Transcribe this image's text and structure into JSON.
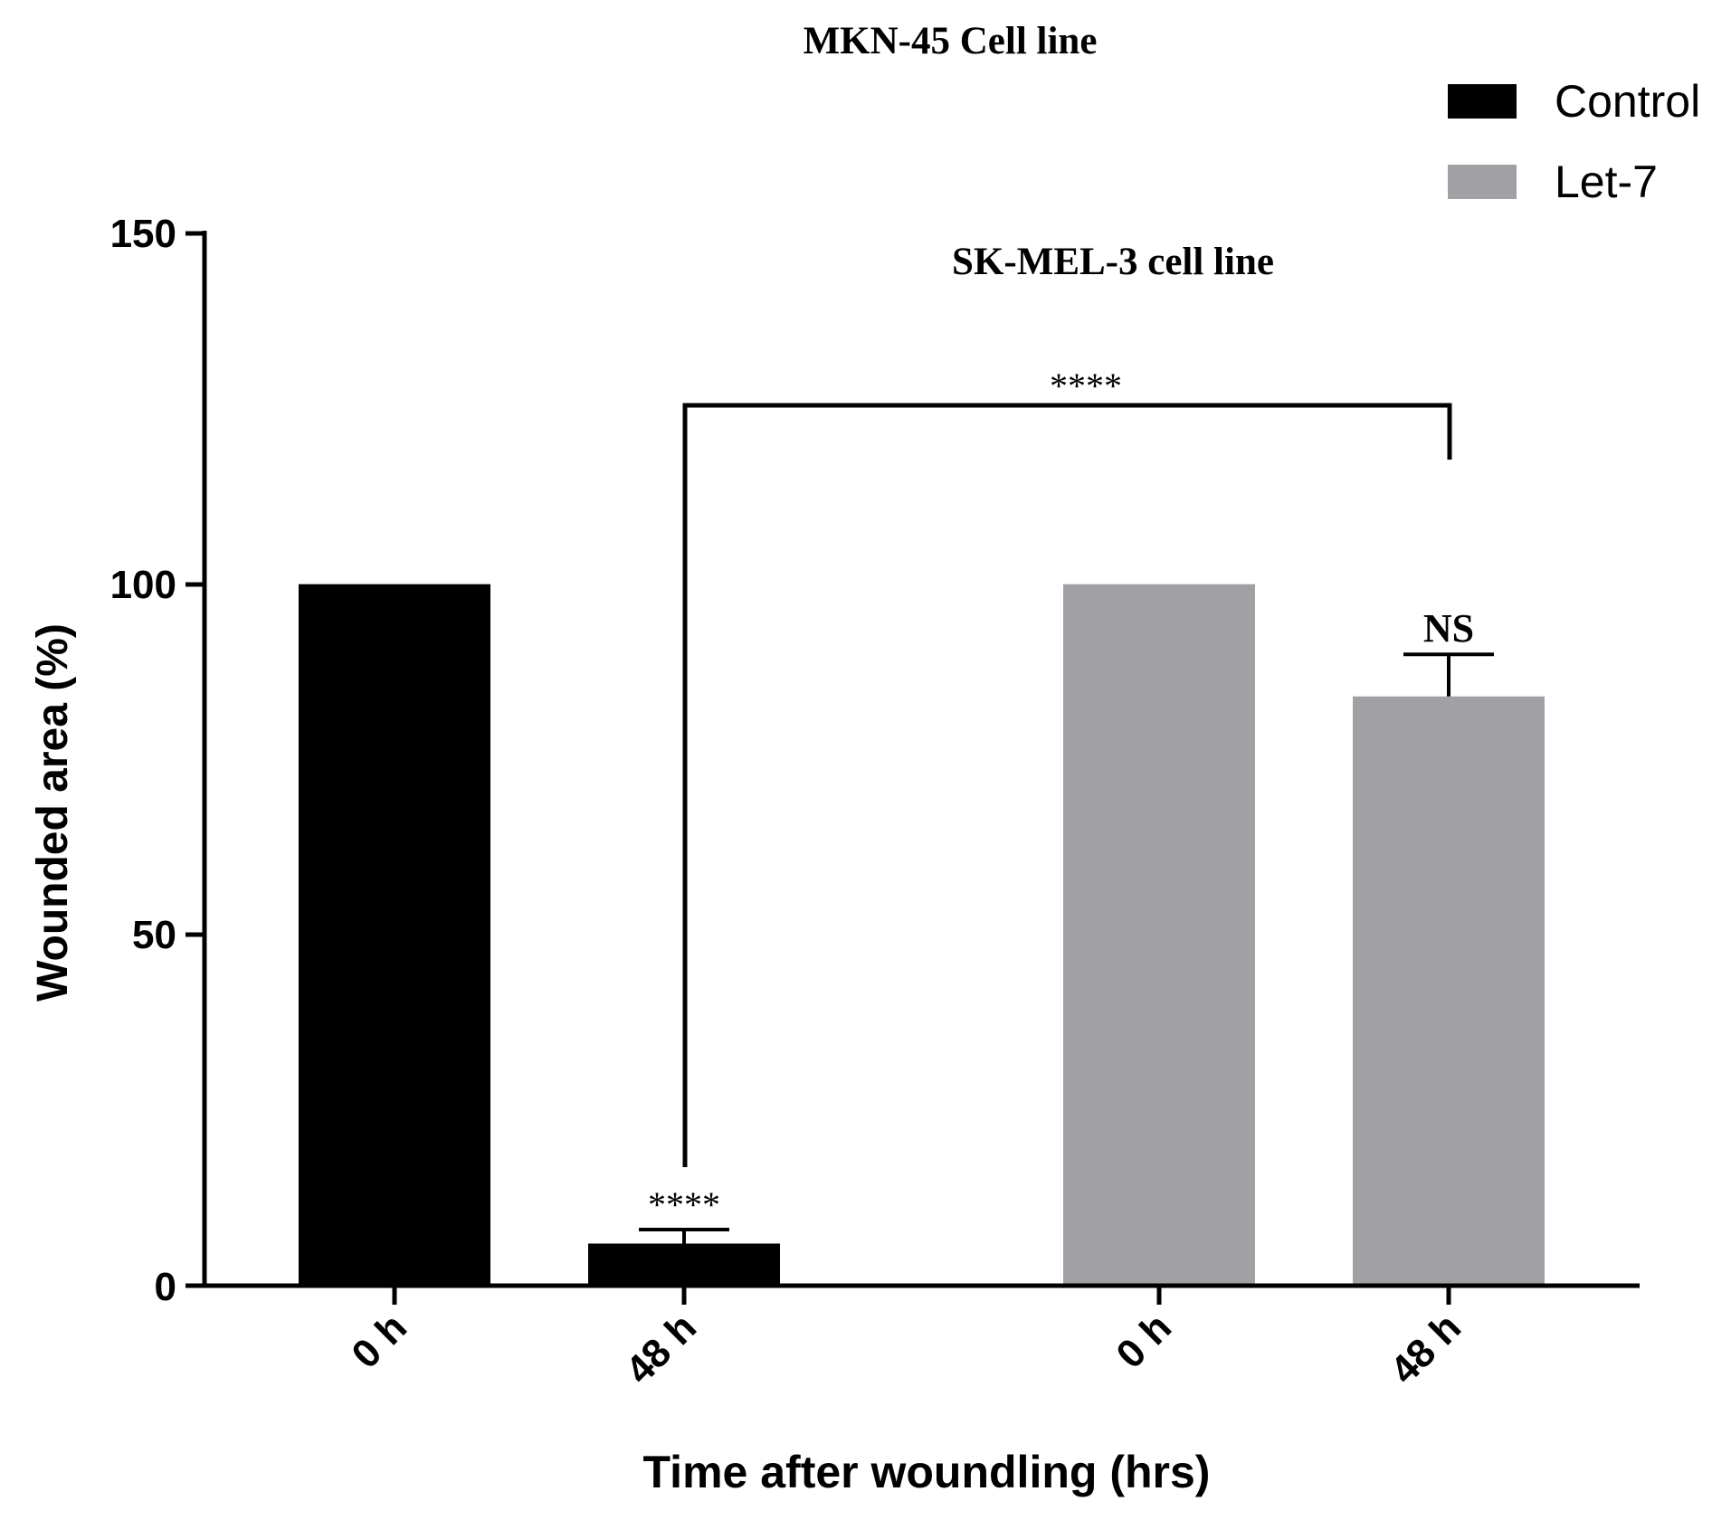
{
  "chart_data": {
    "type": "bar",
    "title": "MKN-45 Cell line",
    "subtitle": "SK-MEL-3 cell line",
    "xlabel": "Time after woundling (hrs)",
    "ylabel": "Wounded area (%)",
    "ylim": [
      0,
      150
    ],
    "yticks": [
      "0",
      "50",
      "100",
      "150"
    ],
    "grid": false,
    "legend_position": "top-right",
    "series": [
      {
        "name": "Control",
        "color": "#000000",
        "categories": [
          "0 h",
          "48 h"
        ],
        "values": [
          100,
          6
        ],
        "error": [
          0,
          2
        ],
        "labels": [
          "",
          "****"
        ]
      },
      {
        "name": "Let-7",
        "color": "#a1a1a5",
        "categories": [
          "0 h",
          "48 h"
        ],
        "values": [
          100,
          84
        ],
        "error": [
          0,
          6
        ],
        "labels": [
          "",
          "NS"
        ]
      }
    ],
    "bracket": {
      "label": "****"
    }
  }
}
